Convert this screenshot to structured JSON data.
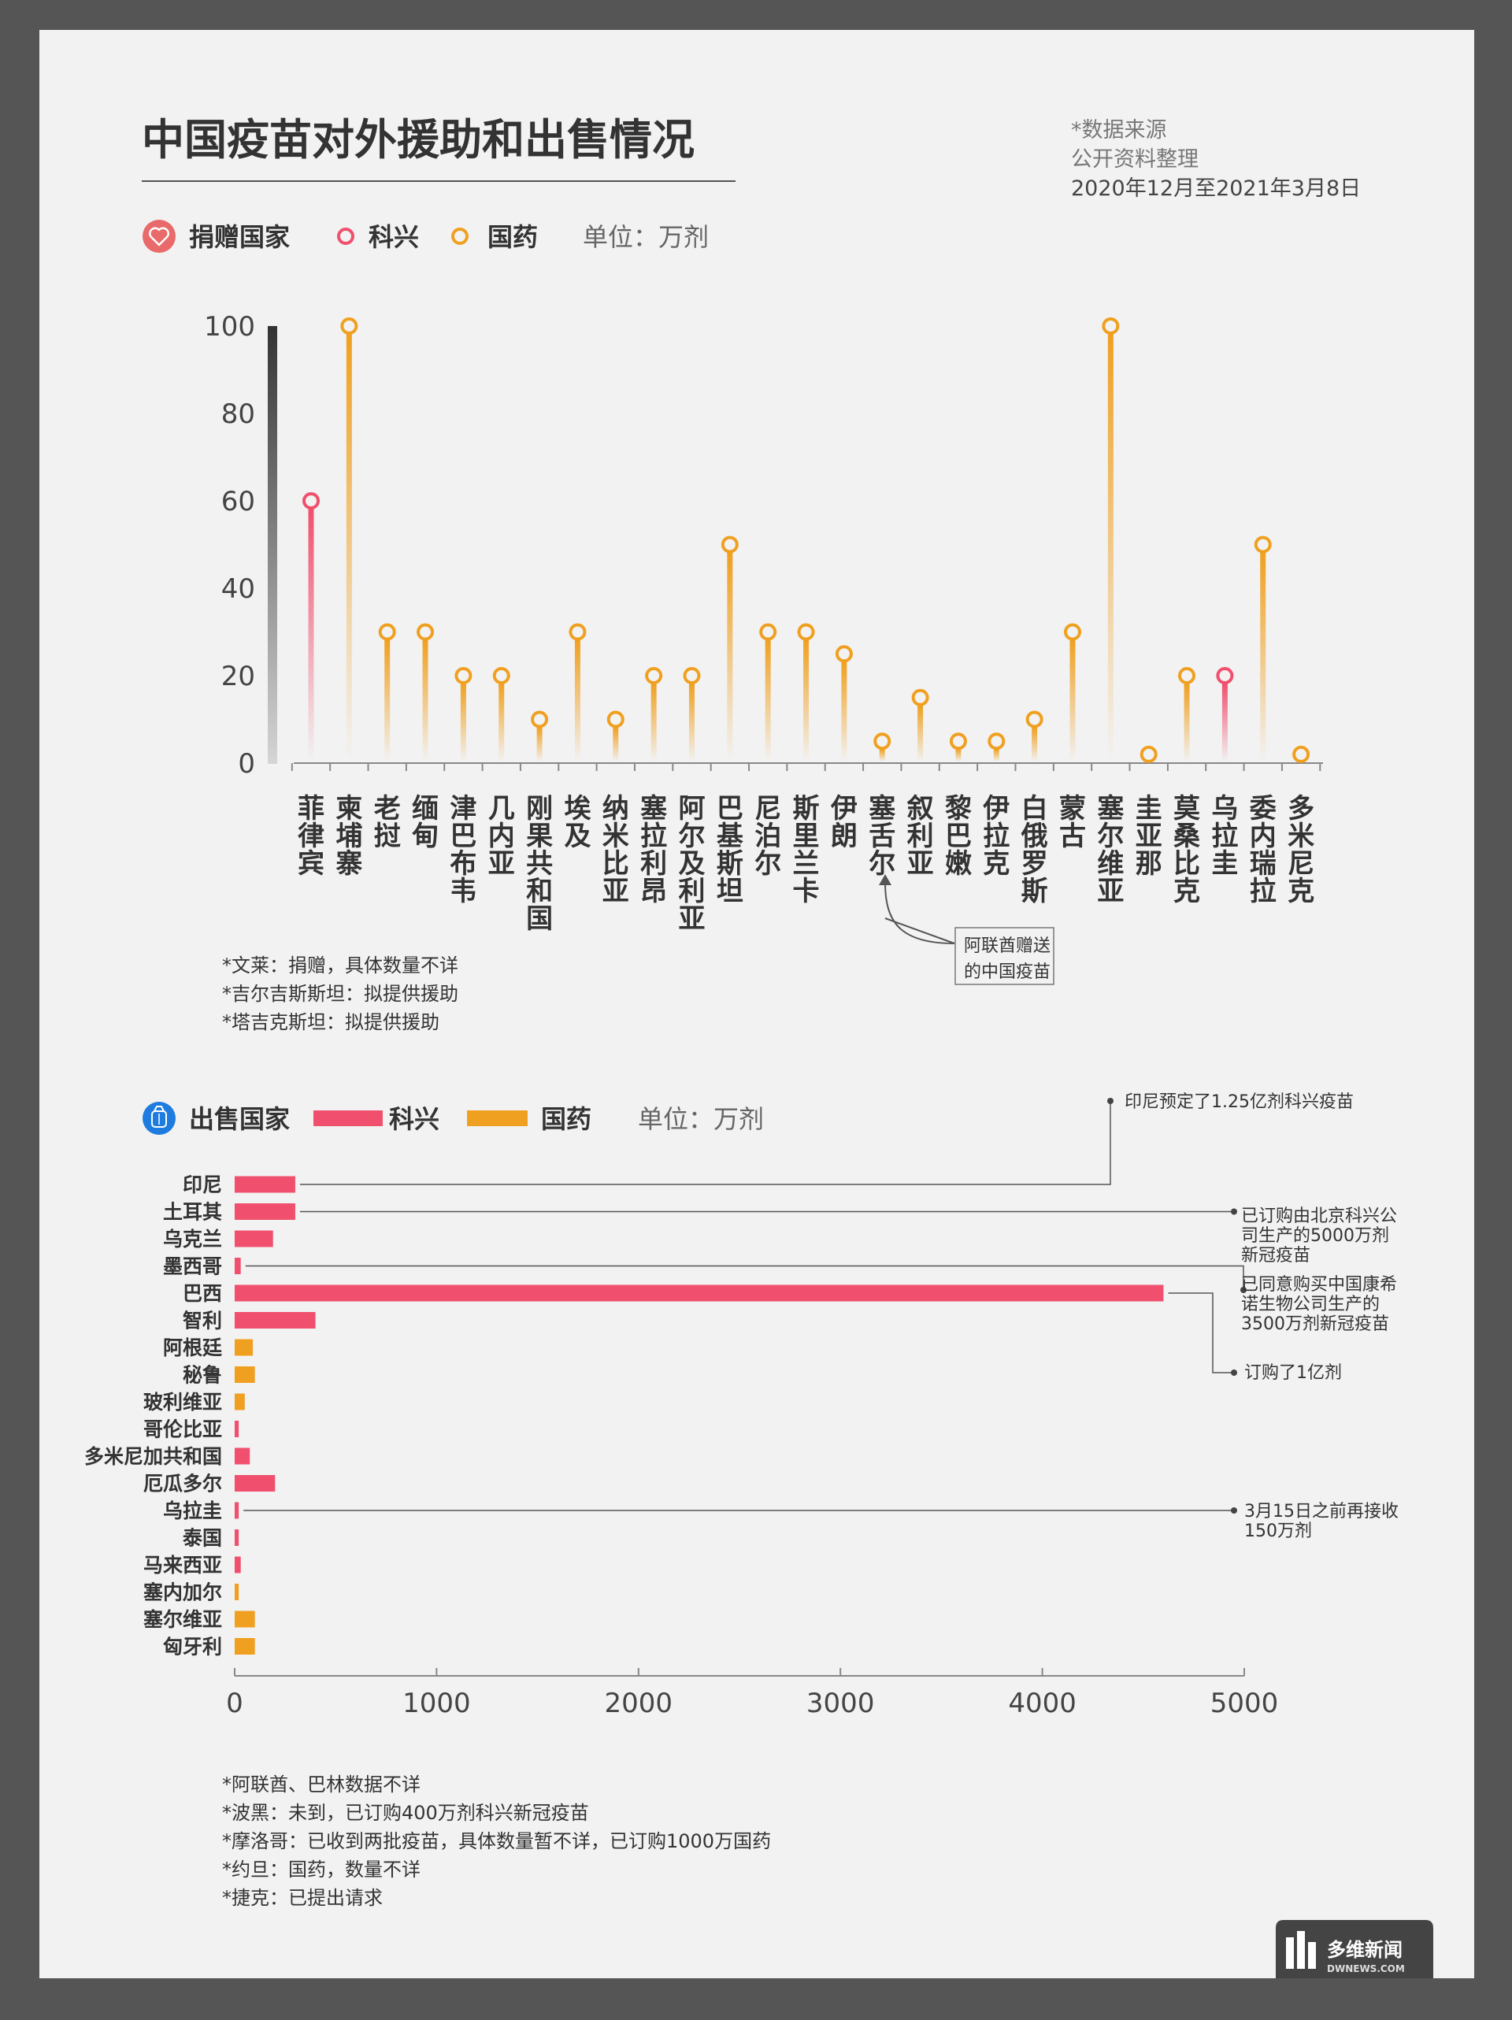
{
  "title": "中国疫苗对外援助和出售情况",
  "source": {
    "line1": "*数据来源",
    "line2": "公开资料整理",
    "line3": "2020年12月至2021年3月8日"
  },
  "colors": {
    "sinovac": "#f0506e",
    "sinopharm": "#f0a020",
    "donation_badge": "#e96a6a",
    "sale_badge": "#1e7be0"
  },
  "icons": {
    "donation": "heart-icon",
    "sale": "money-bag-icon"
  },
  "donation_legend": {
    "heading": "捐赠国家",
    "sinovac": "科兴",
    "sinopharm": "国药",
    "unit": "单位：万剂"
  },
  "sale_legend": {
    "heading": "出售国家",
    "sinovac": "科兴",
    "sinopharm": "国药",
    "unit": "单位：万剂"
  },
  "donation_notes": [
    "*文莱：捐赠，具体数量不详",
    "*吉尔吉斯斯坦：拟提供援助",
    "*塔吉克斯坦：拟提供援助"
  ],
  "donation_annotation": [
    "阿联酋赠送",
    "的中国疫苗"
  ],
  "sale_notes": [
    "*阿联酋、巴林数据不详",
    "*波黑：未到，已订购400万剂科兴新冠疫苗",
    "*摩洛哥：已收到两批疫苗，具体数量暂不详，已订购1000万国药",
    "*约旦：国药，数量不详",
    "*捷克：已提出请求"
  ],
  "sale_annotations": [
    {
      "target": "印尼",
      "lines": [
        "印尼预定了1.25亿剂科兴疫苗"
      ]
    },
    {
      "target": "土耳其",
      "lines": [
        "已订购由北京科兴公",
        "司生产的5000万剂",
        "新冠疫苗"
      ]
    },
    {
      "target": "墨西哥",
      "lines": [
        "已同意购买中国康希",
        "诺生物公司生产的",
        "3500万剂新冠疫苗"
      ]
    },
    {
      "target": "巴西",
      "lines": [
        "订购了1亿剂"
      ]
    },
    {
      "target": "乌拉圭",
      "lines": [
        "3月15日之前再接收",
        "150万剂"
      ]
    }
  ],
  "logo": {
    "cn": "多维新闻",
    "en": "DWNEWS.COM"
  },
  "chart_data": [
    {
      "type": "lollipop",
      "title": "捐赠国家",
      "ylabel": "单位：万剂",
      "ylim": [
        0,
        100
      ],
      "yticks": [
        0,
        20,
        40,
        60,
        80,
        100
      ],
      "series_names": {
        "sinovac": "科兴",
        "sinopharm": "国药"
      },
      "points": [
        {
          "country": "菲律宾",
          "value": 60,
          "vaccine": "sinovac"
        },
        {
          "country": "柬埔寨",
          "value": 100,
          "vaccine": "sinopharm"
        },
        {
          "country": "老挝",
          "value": 30,
          "vaccine": "sinopharm"
        },
        {
          "country": "缅甸",
          "value": 30,
          "vaccine": "sinopharm"
        },
        {
          "country": "津巴布韦",
          "value": 20,
          "vaccine": "sinopharm"
        },
        {
          "country": "几内亚",
          "value": 20,
          "vaccine": "sinopharm"
        },
        {
          "country": "刚果共和国",
          "value": 10,
          "vaccine": "sinopharm"
        },
        {
          "country": "埃及",
          "value": 30,
          "vaccine": "sinopharm"
        },
        {
          "country": "纳米比亚",
          "value": 10,
          "vaccine": "sinopharm"
        },
        {
          "country": "塞拉利昂",
          "value": 20,
          "vaccine": "sinopharm"
        },
        {
          "country": "阿尔及利亚",
          "value": 20,
          "vaccine": "sinopharm"
        },
        {
          "country": "巴基斯坦",
          "value": 50,
          "vaccine": "sinopharm"
        },
        {
          "country": "尼泊尔",
          "value": 30,
          "vaccine": "sinopharm"
        },
        {
          "country": "斯里兰卡",
          "value": 30,
          "vaccine": "sinopharm"
        },
        {
          "country": "伊朗",
          "value": 25,
          "vaccine": "sinopharm"
        },
        {
          "country": "塞舌尔",
          "value": 5,
          "vaccine": "sinopharm"
        },
        {
          "country": "叙利亚",
          "value": 15,
          "vaccine": "sinopharm"
        },
        {
          "country": "黎巴嫩",
          "value": 5,
          "vaccine": "sinopharm"
        },
        {
          "country": "伊拉克",
          "value": 5,
          "vaccine": "sinopharm"
        },
        {
          "country": "白俄罗斯",
          "value": 10,
          "vaccine": "sinopharm"
        },
        {
          "country": "蒙古",
          "value": 30,
          "vaccine": "sinopharm"
        },
        {
          "country": "塞尔维亚",
          "value": 100,
          "vaccine": "sinopharm"
        },
        {
          "country": "圭亚那",
          "value": 2,
          "vaccine": "sinopharm"
        },
        {
          "country": "莫桑比克",
          "value": 20,
          "vaccine": "sinopharm"
        },
        {
          "country": "乌拉圭",
          "value": 20,
          "vaccine": "sinovac"
        },
        {
          "country": "委内瑞拉",
          "value": 50,
          "vaccine": "sinopharm"
        },
        {
          "country": "多米尼克",
          "value": 2,
          "vaccine": "sinopharm"
        }
      ]
    },
    {
      "type": "bar",
      "orientation": "horizontal",
      "title": "出售国家",
      "xlabel": "单位：万剂",
      "xlim": [
        0,
        5000
      ],
      "xticks": [
        0,
        1000,
        2000,
        3000,
        4000,
        5000
      ],
      "series_names": {
        "sinovac": "科兴",
        "sinopharm": "国药"
      },
      "bars": [
        {
          "country": "印尼",
          "value": 300,
          "vaccine": "sinovac"
        },
        {
          "country": "土耳其",
          "value": 300,
          "vaccine": "sinovac"
        },
        {
          "country": "乌克兰",
          "value": 190,
          "vaccine": "sinovac"
        },
        {
          "country": "墨西哥",
          "value": 30,
          "vaccine": "sinovac"
        },
        {
          "country": "巴西",
          "value": 4600,
          "vaccine": "sinovac"
        },
        {
          "country": "智利",
          "value": 400,
          "vaccine": "sinovac"
        },
        {
          "country": "阿根廷",
          "value": 90,
          "vaccine": "sinopharm"
        },
        {
          "country": "秘鲁",
          "value": 100,
          "vaccine": "sinopharm"
        },
        {
          "country": "玻利维亚",
          "value": 50,
          "vaccine": "sinopharm"
        },
        {
          "country": "哥伦比亚",
          "value": 20,
          "vaccine": "sinovac"
        },
        {
          "country": "多米尼加共和国",
          "value": 75,
          "vaccine": "sinovac"
        },
        {
          "country": "厄瓜多尔",
          "value": 200,
          "vaccine": "sinovac"
        },
        {
          "country": "乌拉圭",
          "value": 20,
          "vaccine": "sinovac"
        },
        {
          "country": "泰国",
          "value": 20,
          "vaccine": "sinovac"
        },
        {
          "country": "马来西亚",
          "value": 30,
          "vaccine": "sinovac"
        },
        {
          "country": "塞内加尔",
          "value": 20,
          "vaccine": "sinopharm"
        },
        {
          "country": "塞尔维亚",
          "value": 100,
          "vaccine": "sinopharm"
        },
        {
          "country": "匈牙利",
          "value": 100,
          "vaccine": "sinopharm"
        }
      ]
    }
  ]
}
